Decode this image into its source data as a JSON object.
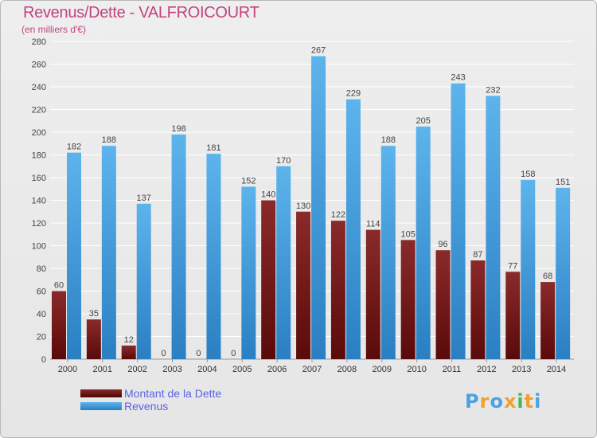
{
  "chart_data": {
    "type": "bar",
    "title": "Revenus/Dette - VALFROICOURT",
    "subtitle": "(en milliers d'€)",
    "categories": [
      "2000",
      "2001",
      "2002",
      "2003",
      "2004",
      "2005",
      "2006",
      "2007",
      "2008",
      "2009",
      "2010",
      "2011",
      "2012",
      "2013",
      "2014"
    ],
    "series": [
      {
        "name": "Montant de la Dette",
        "color": "#7a1c1c",
        "values": [
          60,
          35,
          12,
          0,
          0,
          0,
          140,
          130,
          122,
          114,
          105,
          96,
          87,
          77,
          68
        ]
      },
      {
        "name": "Revenus",
        "color": "#4aa3df",
        "values": [
          182,
          188,
          137,
          198,
          181,
          152,
          170,
          267,
          229,
          188,
          205,
          243,
          232,
          158,
          151
        ]
      }
    ],
    "ylim": [
      0,
      280
    ],
    "yticks": [
      0,
      20,
      40,
      60,
      80,
      100,
      120,
      140,
      160,
      180,
      200,
      220,
      240,
      260,
      280
    ],
    "grid": true,
    "legend_position": "bottom-left"
  },
  "logo": {
    "letters": [
      "P",
      "r",
      "o",
      "x",
      "i",
      "t",
      "i"
    ],
    "colors": [
      "#4aa3df",
      "#f0a030",
      "#4aa3df",
      "#f0a030",
      "#3dbb55",
      "#f0a030",
      "#4aa3df"
    ]
  }
}
